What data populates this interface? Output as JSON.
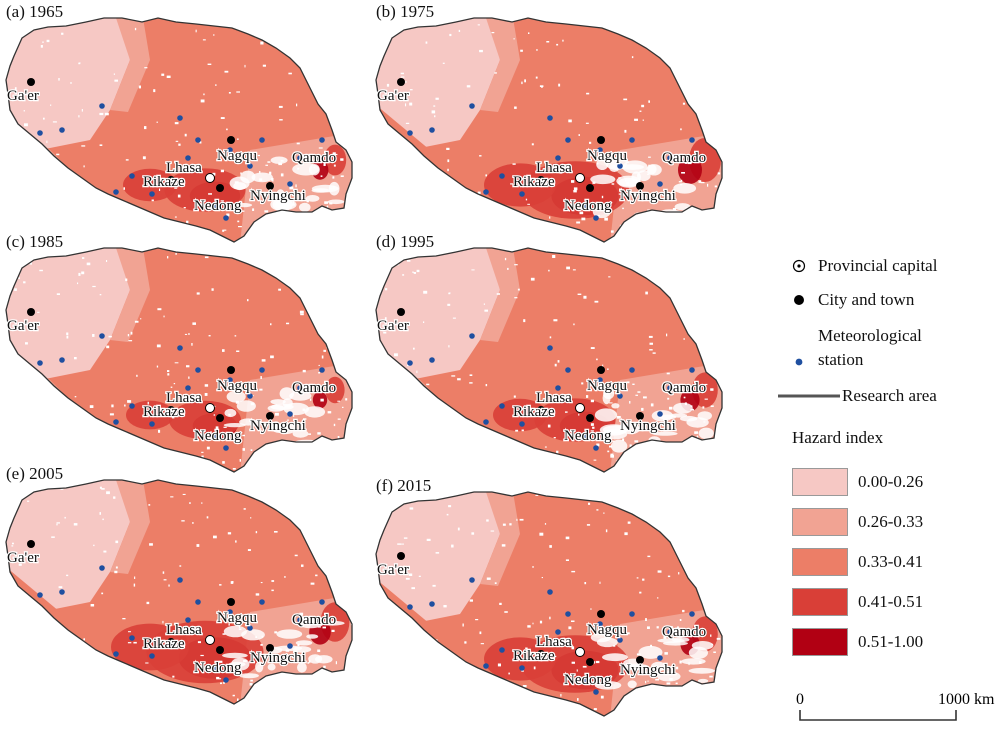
{
  "panels": [
    {
      "title": "(a) 1965"
    },
    {
      "title": "(b) 1975"
    },
    {
      "title": "(c) 1985"
    },
    {
      "title": "(d) 1995"
    },
    {
      "title": "(e) 2005"
    },
    {
      "title": "(f) 2015"
    }
  ],
  "cities": [
    {
      "name": "Ga'er",
      "type": "city"
    },
    {
      "name": "Nagqu",
      "type": "city"
    },
    {
      "name": "Qamdo",
      "type": "city"
    },
    {
      "name": "Lhasa",
      "type": "capital"
    },
    {
      "name": "Rikaze",
      "type": "city"
    },
    {
      "name": "Nyingchi",
      "type": "city"
    },
    {
      "name": "Nedong",
      "type": "city"
    }
  ],
  "legend": {
    "provincial_capital": "Provincial capital",
    "city_and_town": "City and town",
    "meteorological_station_line1": "Meteorological",
    "meteorological_station_line2": "station",
    "research_area": "Research area",
    "hazard_title": "Hazard index",
    "hazard_classes": [
      {
        "label": "0.00-0.26",
        "color": "#f6c8c4"
      },
      {
        "label": "0.26-0.33",
        "color": "#f1a393"
      },
      {
        "label": "0.33-0.41",
        "color": "#ec7e67"
      },
      {
        "label": "0.41-0.51",
        "color": "#d93f37"
      },
      {
        "label": "0.51-1.00",
        "color": "#b10013"
      }
    ]
  },
  "scale_bar": {
    "start": "0",
    "end": "1000 km"
  },
  "colors": {
    "boundary": "#333333",
    "station": "#1f4fa0",
    "city": "#000000"
  }
}
